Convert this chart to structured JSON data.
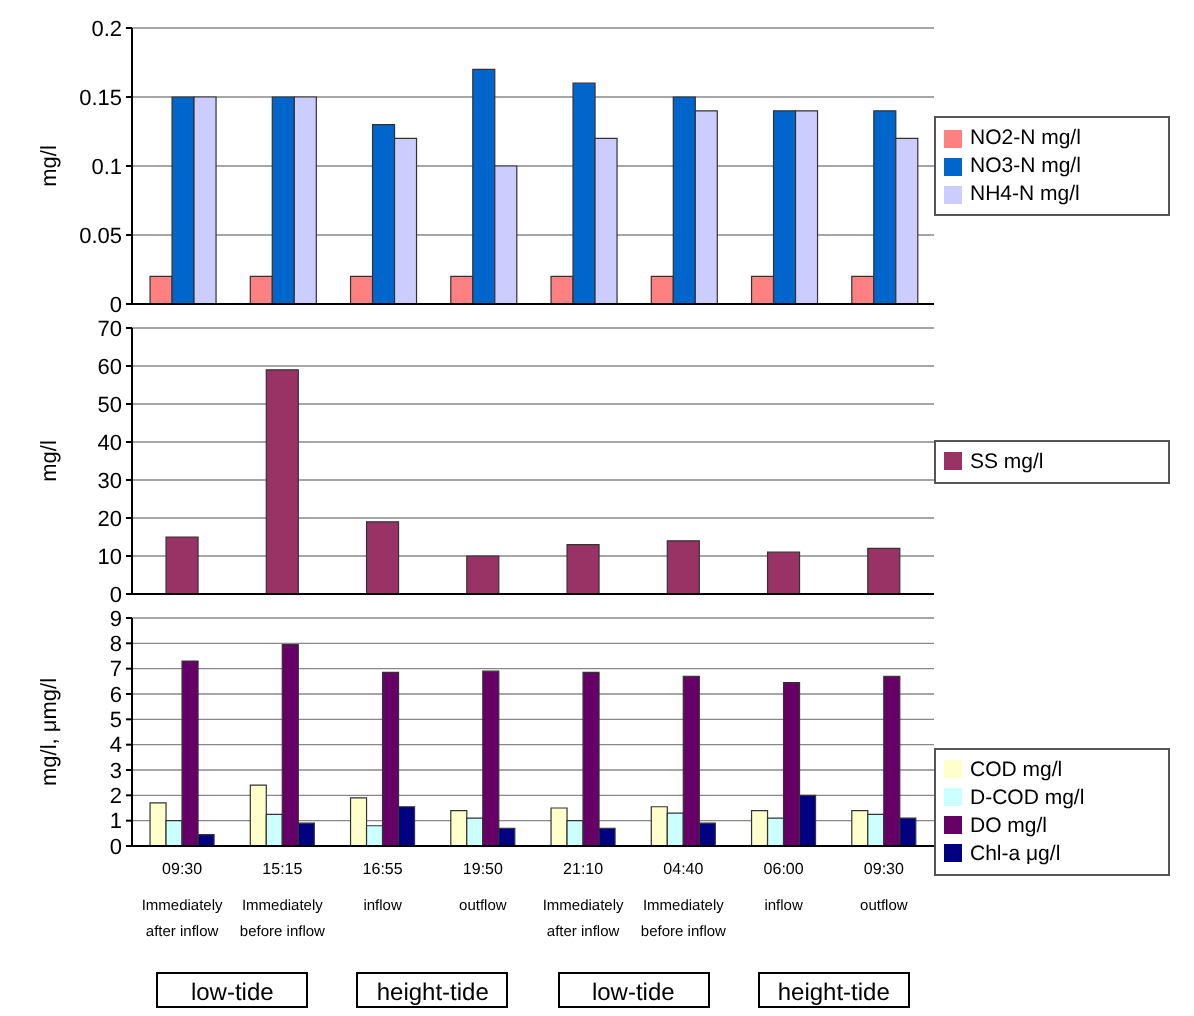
{
  "chart_data": [
    {
      "type": "bar",
      "categories": [
        null,
        null,
        null,
        null,
        null,
        null,
        null,
        null
      ],
      "ylabel": "mg/l",
      "ylim": [
        0,
        0.2
      ],
      "yticks": [
        0,
        0.05,
        0.1,
        0.15,
        0.2
      ],
      "grid": "y",
      "legend": "right",
      "tick_labels": "y",
      "series": [
        {
          "name": "NO2-N mg/l",
          "color": "#ff8080",
          "values": [
            0.02,
            0.02,
            0.02,
            0.02,
            0.02,
            0.02,
            0.02,
            0.02
          ]
        },
        {
          "name": "NO3-N mg/l",
          "color": "#0066cc",
          "values": [
            0.15,
            0.15,
            0.13,
            0.17,
            0.16,
            0.15,
            0.14,
            0.14
          ]
        },
        {
          "name": "NH4-N mg/l",
          "color": "#ccccff",
          "values": [
            0.15,
            0.15,
            0.12,
            0.1,
            0.12,
            0.14,
            0.14,
            0.12
          ]
        }
      ]
    },
    {
      "type": "bar",
      "categories": [
        null,
        null,
        null,
        null,
        null,
        null,
        null,
        null
      ],
      "ylabel": "mg/l",
      "ylim": [
        0,
        70
      ],
      "yticks": [
        0,
        10,
        20,
        30,
        40,
        50,
        60,
        70
      ],
      "grid": "y",
      "legend": "right",
      "tick_labels": "y",
      "series": [
        {
          "name": "SS mg/l",
          "color": "#993366",
          "values": [
            15,
            59,
            19,
            10,
            13,
            14,
            11,
            12
          ]
        }
      ]
    },
    {
      "type": "bar",
      "categories": [
        "09:30\nImmediately\nafter inflow",
        "15:15\nImmediately\nbefore inflow",
        "16:55\ninflow",
        "19:50\noutflow",
        "21:10\nImmediately\nafter inflow",
        "04:40\nImmediately\nbefore inflow",
        "06:00\ninflow",
        "09:30\noutflow"
      ],
      "ylabel": "mg/l, μmg/l",
      "ylim": [
        0,
        9
      ],
      "yticks": [
        0,
        1,
        2,
        3,
        4,
        5,
        6,
        7,
        8,
        9
      ],
      "grid": "y",
      "legend": "right",
      "annotations": [
        "low-tide",
        "height-tide",
        "low-tide",
        "height-tide"
      ],
      "series": [
        {
          "name": "COD mg/l",
          "color": "#ffffcc",
          "values": [
            1.7,
            2.4,
            1.9,
            1.4,
            1.5,
            1.55,
            1.4,
            1.4
          ]
        },
        {
          "name": "D-COD mg/l",
          "color": "#ccffff",
          "values": [
            1.0,
            1.25,
            0.8,
            1.1,
            1.0,
            1.3,
            1.1,
            1.25
          ]
        },
        {
          "name": "DO mg/l",
          "color": "#660066",
          "values": [
            7.3,
            7.95,
            6.85,
            6.9,
            6.85,
            6.7,
            6.45,
            6.7
          ]
        },
        {
          "name": "Chl-a μg/l",
          "color": "#000080",
          "values": [
            0.45,
            0.9,
            1.55,
            0.7,
            0.7,
            0.9,
            2.0,
            1.1
          ]
        }
      ]
    }
  ]
}
